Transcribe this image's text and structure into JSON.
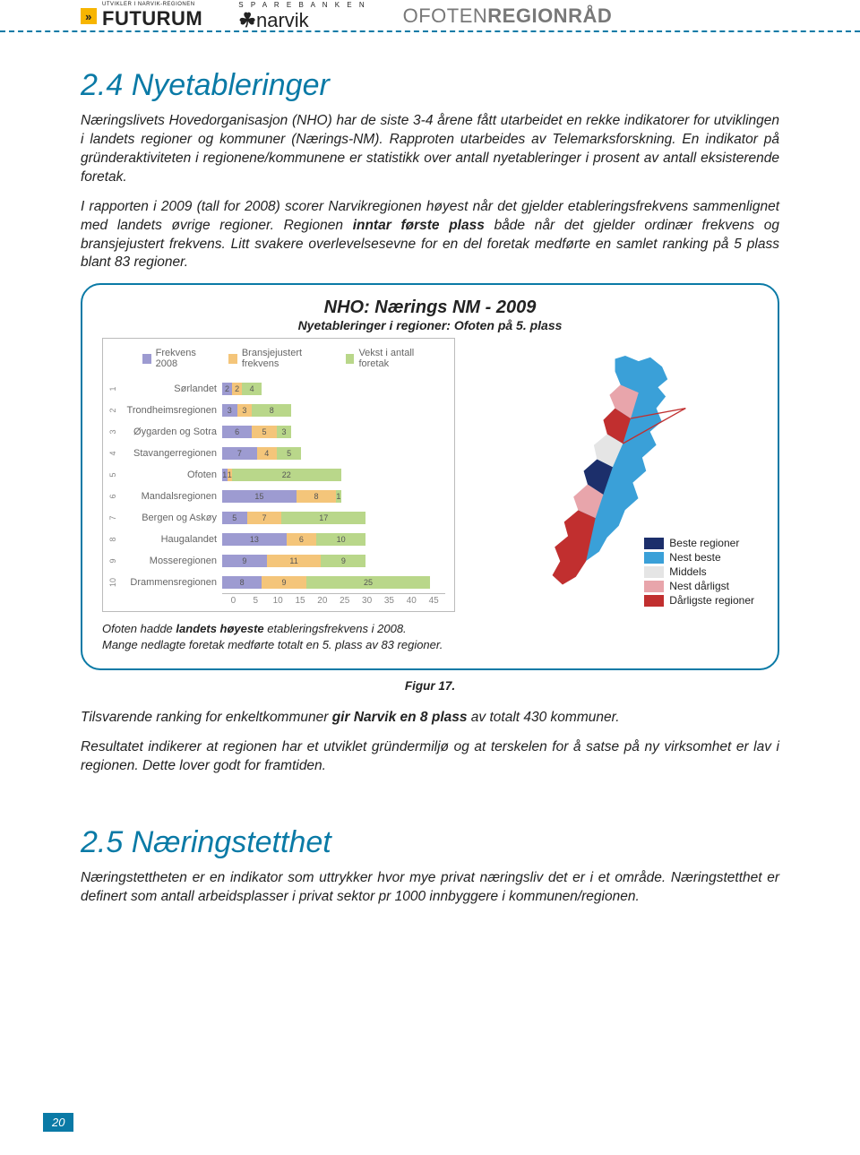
{
  "header": {
    "futurum_tag": "UTVIKLER I NARVIK-REGIONEN",
    "futurum": "FUTURUM",
    "narvik_top": "S P A R E B A N K E N",
    "narvik": "narvik",
    "ofoten_a": "OFOTEN",
    "ofoten_b": "REGIONRÅD"
  },
  "section1": {
    "title": "2.4 Nyetableringer",
    "p1": "Næringslivets Hovedorganisasjon (NHO) har de siste 3-4 årene fått utarbeidet en rekke indikatorer for utviklingen i landets regioner og kommuner (Nærings-NM). Rapproten utarbeides av Telemarksforskning. En indikator på gründeraktiviteten i regionene/kommunene er statistikk over antall nyetableringer i prosent av antall eksisterende foretak.",
    "p2_a": "I rapporten i 2009 (tall for 2008) scorer Narvikregionen høyest når det gjelder etableringsfrekvens sammenlignet med landets øvrige regioner. Regionen ",
    "p2_bold": "inntar første plass",
    "p2_b": " både når det gjelder ordinær frekvens og bransjejustert frekvens. Litt svakere overlevelsesevne for en del foretak medførte en samlet ranking på 5 plass blant 83 regioner."
  },
  "panel": {
    "title": "NHO: Nærings NM - 2009",
    "subtitle": "Nyetableringer i regioner: Ofoten på 5. plass",
    "caption_a": "Ofoten hadde ",
    "caption_bold": "landets høyeste",
    "caption_b": " etableringsfrekvens i 2008.",
    "caption_line2": "Mange nedlagte foretak medførte totalt en 5. plass av 83 regioner.",
    "figure": "Figur 17."
  },
  "chart": {
    "type": "stacked-bar-horizontal",
    "xmax": 45,
    "xticks": [
      0,
      5,
      10,
      15,
      20,
      25,
      30,
      35,
      40,
      45
    ],
    "series": [
      {
        "label": "Frekvens 2008",
        "color": "#9d9bd1"
      },
      {
        "label": "Bransjejustert frekvens",
        "color": "#f4c57a"
      },
      {
        "label": "Vekst i antall foretak",
        "color": "#b9d78a"
      }
    ],
    "rows": [
      {
        "idx": "1",
        "label": "Sørlandet",
        "v": [
          2,
          2,
          4
        ]
      },
      {
        "idx": "2",
        "label": "Trondheimsregionen",
        "v": [
          3,
          3,
          8
        ]
      },
      {
        "idx": "3",
        "label": "Øygarden og Sotra",
        "v": [
          6,
          5,
          3
        ]
      },
      {
        "idx": "4",
        "label": "Stavangerregionen",
        "v": [
          7,
          4,
          5
        ]
      },
      {
        "idx": "5",
        "label": "Ofoten",
        "v": [
          1,
          1,
          22
        ]
      },
      {
        "idx": "6",
        "label": "Mandalsregionen",
        "v": [
          15,
          8,
          1
        ]
      },
      {
        "idx": "7",
        "label": "Bergen og Askøy",
        "v": [
          5,
          7,
          17
        ]
      },
      {
        "idx": "8",
        "label": "Haugalandet",
        "v": [
          13,
          6,
          10
        ]
      },
      {
        "idx": "9",
        "label": "Mosseregionen",
        "v": [
          9,
          11,
          9
        ]
      },
      {
        "idx": "10",
        "label": "Drammensregionen",
        "v": [
          8,
          9,
          25
        ]
      }
    ]
  },
  "map_legend": [
    {
      "label": "Beste regioner",
      "color": "#1c2f6b"
    },
    {
      "label": "Nest beste",
      "color": "#3aa0d8"
    },
    {
      "label": "Middels",
      "color": "#e5e5e5"
    },
    {
      "label": "Nest dårligst",
      "color": "#e8a5ab"
    },
    {
      "label": "Dårligste regioner",
      "color": "#c12f2f"
    }
  ],
  "after_panel": {
    "p1_a": "Tilsvarende ranking for enkeltkommuner ",
    "p1_bold": "gir Narvik en 8 plass",
    "p1_b": " av totalt 430 kommuner.",
    "p2": "Resultatet indikerer at regionen har et utviklet gründermiljø og at terskelen for å satse på ny virksomhet er lav i regionen.  Dette lover godt for framtiden."
  },
  "section2": {
    "title": "2.5 Næringstetthet",
    "p1": "Næringstettheten er en indikator som uttrykker hvor mye privat næringsliv det er i et område. Næringstetthet er definert som antall arbeidsplasser i privat sektor pr 1000 innbyggere i kommunen/regionen."
  },
  "footer": {
    "page": "20"
  }
}
